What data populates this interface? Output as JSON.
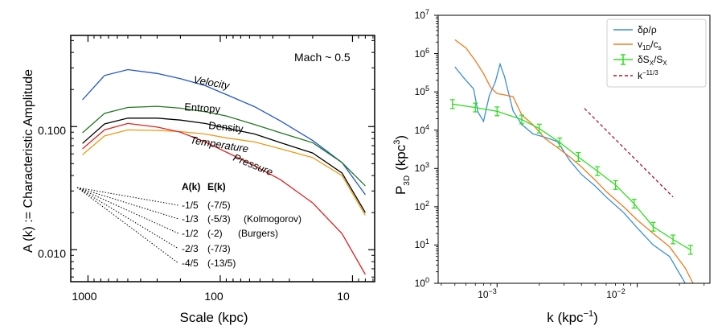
{
  "chart_data": [
    {
      "type": "line",
      "title": "",
      "annotation": "Mach ~ 0.5",
      "xlabel": "Scale  (kpc)",
      "ylabel": "A (k) := Characteristic Amplitude",
      "xscale": "log",
      "yscale": "log",
      "xlim": [
        1350,
        6.8
      ],
      "ylim": [
        0.0055,
        0.55
      ],
      "xticks": [
        1000,
        100,
        10
      ],
      "xtick_labels": [
        "1000",
        "100",
        "10"
      ],
      "yticks": [
        0.01,
        0.1
      ],
      "ytick_labels": [
        "0.010",
        "0.100"
      ],
      "x": [
        1100,
        750,
        500,
        300,
        200,
        130,
        90,
        55,
        35,
        20,
        12,
        8
      ],
      "series": [
        {
          "name": "Velocity",
          "color": "#2255cc",
          "values": [
            0.165,
            0.26,
            0.29,
            0.27,
            0.245,
            0.215,
            0.182,
            0.145,
            0.111,
            0.077,
            0.051,
            0.028
          ]
        },
        {
          "name": "Entropy",
          "color": "#227722",
          "values": [
            0.089,
            0.128,
            0.143,
            0.146,
            0.141,
            0.132,
            0.122,
            0.104,
            0.089,
            0.074,
            0.051,
            0.033
          ]
        },
        {
          "name": "Density",
          "color": "#000000",
          "values": [
            0.073,
            0.105,
            0.117,
            0.117,
            0.113,
            0.106,
            0.097,
            0.087,
            0.074,
            0.061,
            0.042,
            0.02
          ]
        },
        {
          "name": "Temperature",
          "color": "#ee9911",
          "values": [
            0.059,
            0.084,
            0.094,
            0.093,
            0.091,
            0.087,
            0.081,
            0.075,
            0.066,
            0.056,
            0.04,
            0.019
          ]
        },
        {
          "name": "Pressure",
          "color": "#dd2222",
          "values": [
            0.066,
            0.094,
            0.106,
            0.099,
            0.09,
            0.075,
            0.062,
            0.048,
            0.037,
            0.024,
            0.0135,
            0.0063
          ]
        }
      ],
      "slope_table": {
        "headers": [
          "A(k)",
          "E(k)"
        ],
        "rows": [
          {
            "a": "-1/5",
            "e": "(-7/5)",
            "note": ""
          },
          {
            "a": "-1/3",
            "e": "(-5/3)",
            "note": "(Kolmogorov)"
          },
          {
            "a": "-1/2",
            "e": "(-2)",
            "note": "(Burgers)"
          },
          {
            "a": "-2/3",
            "e": "(-7/3)",
            "note": ""
          },
          {
            "a": "-4/5",
            "e": "(-13/5)",
            "note": ""
          }
        ],
        "slopes": [
          -0.2,
          -0.333,
          -0.5,
          -0.667,
          -0.8
        ]
      }
    },
    {
      "type": "line",
      "title": "",
      "xlabel": "k  (kpc",
      "xlabel_sup": "−1",
      "xlabel_end": ")",
      "ylabel_main": "P",
      "ylabel_sub": "3D",
      "ylabel_unit": "(kpc",
      "ylabel_unit_sup": "3",
      "ylabel_end": ")",
      "xscale": "log",
      "yscale": "log",
      "xlim": [
        0.00038,
        0.033
      ],
      "ylim": [
        1,
        10000000
      ],
      "xticks": [
        0.001,
        0.01
      ],
      "xtick_base": "10",
      "xtick_exps": [
        "−3",
        "−2"
      ],
      "yticks": [
        1,
        10,
        100,
        1000,
        10000,
        100000,
        1000000,
        10000000
      ],
      "ytick_base": "10",
      "ytick_exps": [
        "0",
        "1",
        "2",
        "3",
        "4",
        "5",
        "6",
        "7"
      ],
      "legend_position": "top-right",
      "series": [
        {
          "name": "δρ/ρ",
          "color": "#3a8fd8",
          "x": [
            0.0005,
            0.00058,
            0.00068,
            0.00073,
            0.0008,
            0.00088,
            0.00097,
            0.00105,
            0.00113,
            0.0013,
            0.0015,
            0.0018,
            0.0022,
            0.0027,
            0.0033,
            0.004,
            0.005,
            0.006,
            0.008,
            0.01,
            0.013,
            0.017,
            0.022
          ],
          "values": [
            450000,
            230000,
            120000,
            30000,
            17000,
            80000,
            180000,
            530000,
            250000,
            32000,
            14000,
            8000,
            6500,
            5000,
            1600,
            700,
            350,
            180,
            70,
            28,
            10,
            5,
            1.0
          ]
        },
        {
          "name": "v1D/cs",
          "color": "#f07a1e",
          "x": [
            0.0005,
            0.0006,
            0.0007,
            0.0008,
            0.0009,
            0.001,
            0.0011,
            0.0013,
            0.0015,
            0.0018,
            0.0022,
            0.0027,
            0.0033,
            0.004,
            0.005,
            0.006,
            0.008,
            0.01,
            0.013,
            0.017,
            0.022,
            0.025
          ],
          "values": [
            2300000,
            1400000,
            650000,
            300000,
            130000,
            90000,
            85000,
            75000,
            25000,
            14000,
            6000,
            3500,
            2000,
            1100,
            500,
            250,
            100,
            45,
            20,
            9,
            2.5,
            1.0
          ]
        },
        {
          "name": "δSx/Sx",
          "color": "#33dd22",
          "x": [
            0.00048,
            0.0007,
            0.001,
            0.0015,
            0.002,
            0.0028,
            0.0038,
            0.0052,
            0.007,
            0.0095,
            0.013,
            0.018,
            0.024
          ],
          "values": [
            48000,
            39000,
            31000,
            19000,
            11000,
            4800,
            2000,
            850,
            370,
            120,
            30,
            14,
            7.5
          ],
          "error_bars": true
        },
        {
          "name": "k^-11/3",
          "color": "#b01025",
          "dash": true,
          "x": [
            0.0042,
            0.018
          ],
          "values": [
            37000,
            180
          ]
        }
      ],
      "legend": [
        {
          "main": "δρ/ρ",
          "sub1": "",
          "mid": "",
          "sub2": "",
          "sup": "",
          "style": "solid",
          "color": "#3a8fd8"
        },
        {
          "main": "v",
          "sub1": "1D",
          "mid": "/c",
          "sub2": "s",
          "sup": "",
          "style": "solid",
          "color": "#f07a1e"
        },
        {
          "main": "δS",
          "sub1": "X",
          "mid": "/S",
          "sub2": "X",
          "sup": "",
          "style": "errorbar",
          "color": "#33dd22"
        },
        {
          "main": "k",
          "sub1": "",
          "mid": "",
          "sub2": "",
          "sup": "−11/3",
          "style": "dashed",
          "color": "#b01025"
        }
      ]
    }
  ]
}
